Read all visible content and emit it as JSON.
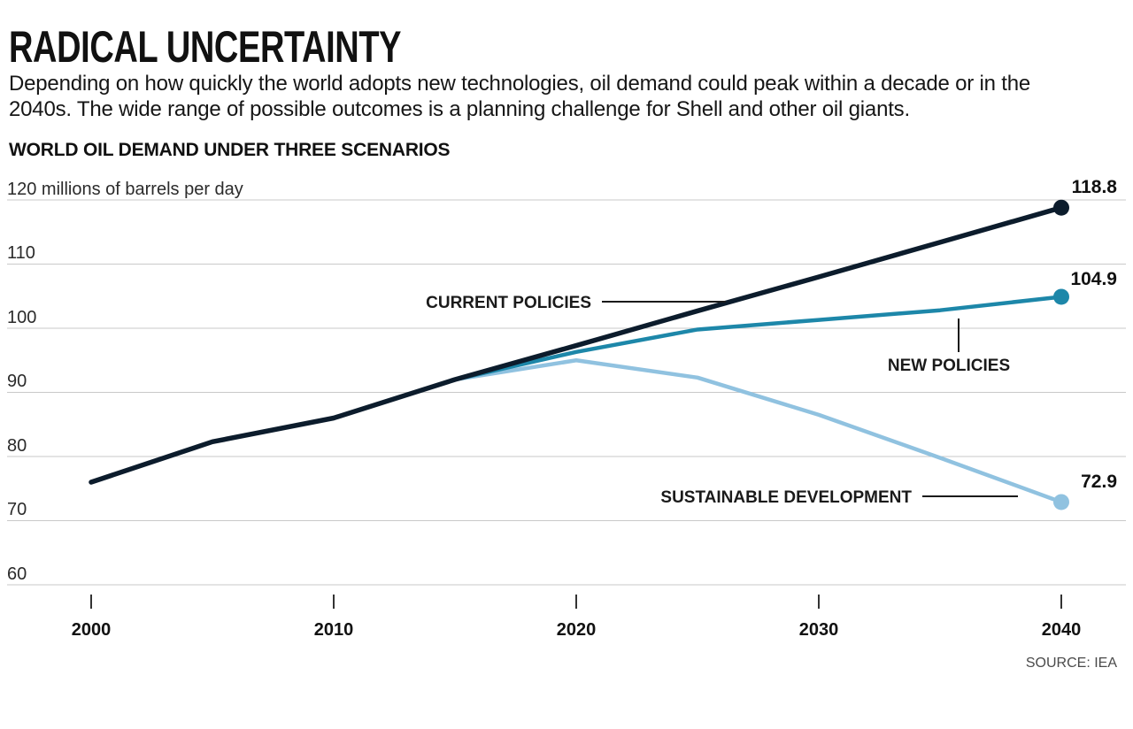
{
  "header": {
    "title": "RADICAL UNCERTAINTY",
    "subtitle": "Depending on how quickly the world adopts new technologies, oil demand could peak within a decade or in the 2040s. The wide range of possible outcomes is a planning challenge for Shell and other oil giants."
  },
  "chart": {
    "heading": "WORLD OIL DEMAND UNDER THREE SCENARIOS",
    "ytick_labels": [
      "120 millions of barrels per day",
      "110",
      "100",
      "90",
      "80",
      "70",
      "60"
    ],
    "xtick_labels": [
      "2000",
      "2010",
      "2020",
      "2030",
      "2040"
    ],
    "source": "SOURCE: IEA"
  },
  "chart_data": {
    "type": "line",
    "title": "WORLD OIL DEMAND UNDER THREE SCENARIOS",
    "ylabel": "millions of barrels per day",
    "xlabel": "",
    "ylim": [
      60,
      120
    ],
    "yticks": [
      60,
      70,
      80,
      90,
      100,
      110,
      120
    ],
    "xticks": [
      2000,
      2010,
      2020,
      2030,
      2040
    ],
    "grid": true,
    "legend_position": "inline-annotations",
    "source": "SOURCE: IEA",
    "x": [
      2000,
      2005,
      2010,
      2015,
      2020,
      2025,
      2030,
      2035,
      2040
    ],
    "series": [
      {
        "name": "CURRENT POLICIES",
        "color": "#0c1c2c",
        "end_label": "118.8",
        "values": [
          76,
          82.3,
          86,
          92,
          97.3,
          102.7,
          108,
          113.4,
          118.8
        ]
      },
      {
        "name": "NEW POLICIES",
        "color": "#1d87a9",
        "end_label": "104.9",
        "values": [
          76,
          82.3,
          86,
          92,
          96.3,
          99.8,
          101.3,
          102.8,
          104.9
        ]
      },
      {
        "name": "SUSTAINABLE DEVELOPMENT",
        "color": "#90c2e0",
        "end_label": "72.9",
        "values": [
          76,
          82.3,
          86,
          92,
          95,
          92.3,
          86.5,
          79.8,
          72.9
        ]
      }
    ]
  }
}
